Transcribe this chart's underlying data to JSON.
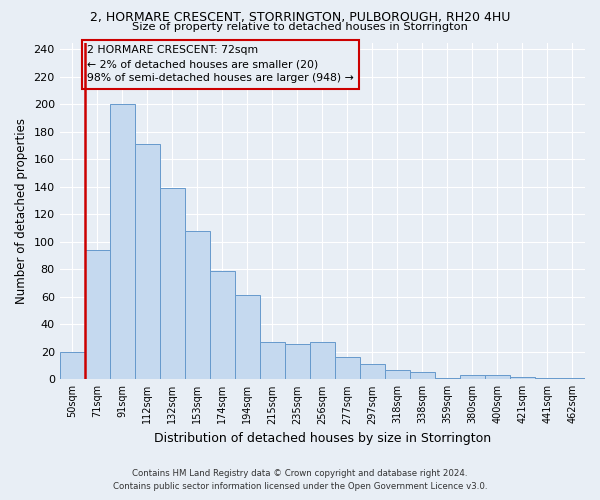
{
  "title1": "2, HORMARE CRESCENT, STORRINGTON, PULBOROUGH, RH20 4HU",
  "title2": "Size of property relative to detached houses in Storrington",
  "xlabel": "Distribution of detached houses by size in Storrington",
  "ylabel": "Number of detached properties",
  "categories": [
    "50sqm",
    "71sqm",
    "91sqm",
    "112sqm",
    "132sqm",
    "153sqm",
    "174sqm",
    "194sqm",
    "215sqm",
    "235sqm",
    "256sqm",
    "277sqm",
    "297sqm",
    "318sqm",
    "338sqm",
    "359sqm",
    "380sqm",
    "400sqm",
    "421sqm",
    "441sqm",
    "462sqm"
  ],
  "values": [
    20,
    94,
    200,
    171,
    139,
    108,
    79,
    61,
    27,
    26,
    27,
    16,
    11,
    7,
    5,
    1,
    3,
    3,
    2,
    1,
    1
  ],
  "bar_color": "#c5d9ef",
  "bar_edge_color": "#6699cc",
  "highlight_color": "#cc0000",
  "ylim": [
    0,
    245
  ],
  "yticks": [
    0,
    20,
    40,
    60,
    80,
    100,
    120,
    140,
    160,
    180,
    200,
    220,
    240
  ],
  "annotation_title": "2 HORMARE CRESCENT: 72sqm",
  "annotation_line1": "← 2% of detached houses are smaller (20)",
  "annotation_line2": "98% of semi-detached houses are larger (948) →",
  "footer1": "Contains HM Land Registry data © Crown copyright and database right 2024.",
  "footer2": "Contains public sector information licensed under the Open Government Licence v3.0.",
  "bg_color": "#e8eef5",
  "grid_color": "#ffffff"
}
